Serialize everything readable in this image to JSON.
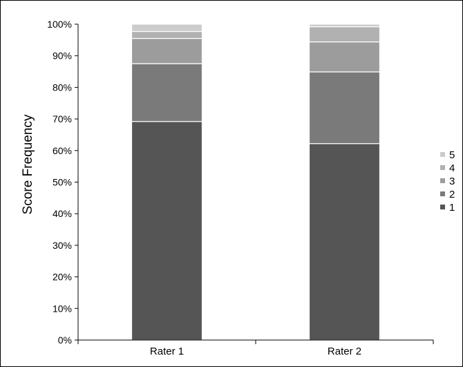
{
  "chart_data": {
    "type": "bar",
    "stacked": true,
    "percent": true,
    "categories": [
      "Rater 1",
      "Rater 2"
    ],
    "series": [
      {
        "name": "1",
        "values": [
          69.2,
          62.2
        ],
        "color": "#555555"
      },
      {
        "name": "2",
        "values": [
          18.3,
          22.7
        ],
        "color": "#7a7a7a"
      },
      {
        "name": "3",
        "values": [
          8.0,
          9.5
        ],
        "color": "#9c9c9c"
      },
      {
        "name": "4",
        "values": [
          2.2,
          4.8
        ],
        "color": "#b1b1b1"
      },
      {
        "name": "5",
        "values": [
          2.3,
          0.8
        ],
        "color": "#cccccc"
      }
    ],
    "ylabel": "Score Frequency",
    "xlabel": "",
    "ylim": [
      0,
      100
    ],
    "yticks": [
      "0%",
      "10%",
      "20%",
      "30%",
      "40%",
      "50%",
      "60%",
      "70%",
      "80%",
      "90%",
      "100%"
    ],
    "grid": false,
    "legend": {
      "position": "right",
      "order": [
        "5",
        "4",
        "3",
        "2",
        "1"
      ]
    }
  }
}
